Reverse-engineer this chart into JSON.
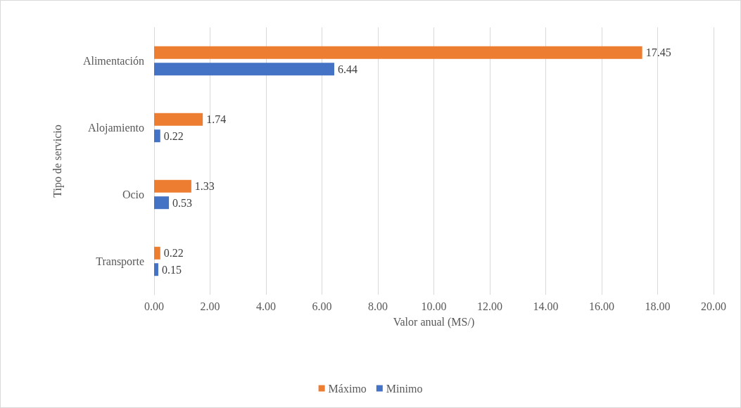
{
  "chart_data": {
    "type": "bar",
    "orientation": "horizontal",
    "xlabel": "Valor anual (MS/)",
    "ylabel": "Tipo de servicio",
    "categories": [
      "Alimentación",
      "Alojamiento",
      "Ocio",
      "Transporte"
    ],
    "series": [
      {
        "name": "Máximo",
        "color": "#ed7d31",
        "values": [
          17.45,
          1.74,
          1.33,
          0.22
        ]
      },
      {
        "name": "Minimo",
        "color": "#4472c4",
        "values": [
          6.44,
          0.22,
          0.53,
          0.15
        ]
      }
    ],
    "xlim": [
      0,
      20
    ],
    "xticks": [
      {
        "value": 0,
        "label": "0.00"
      },
      {
        "value": 2,
        "label": "2.00"
      },
      {
        "value": 4,
        "label": "4.00"
      },
      {
        "value": 6,
        "label": "6.00"
      },
      {
        "value": 8,
        "label": "8.00"
      },
      {
        "value": 10,
        "label": "10.00"
      },
      {
        "value": 12,
        "label": "12.00"
      },
      {
        "value": 14,
        "label": "14.00"
      },
      {
        "value": 16,
        "label": "16.00"
      },
      {
        "value": 18,
        "label": "18.00"
      },
      {
        "value": 20,
        "label": "20.00"
      }
    ],
    "grid": "x",
    "legend": "bottom",
    "data_labels": true
  }
}
